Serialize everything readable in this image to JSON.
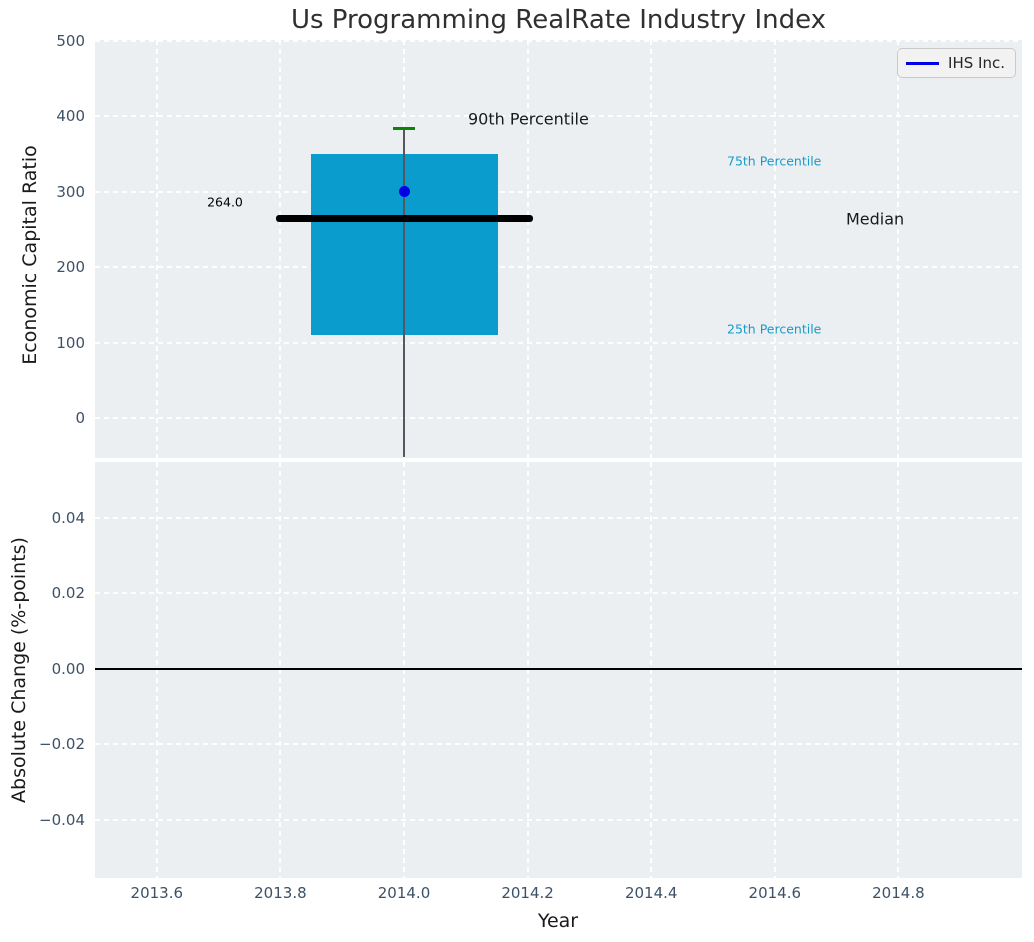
{
  "title": "Us Programming RealRate Industry Index",
  "x_axis": {
    "label": "Year",
    "lim": [
      2013.5,
      2015.0
    ],
    "tick_values": [
      2013.6,
      2013.8,
      2014.0,
      2014.2,
      2014.4,
      2014.6,
      2014.8
    ],
    "tick_labels": [
      "2013.6",
      "2013.8",
      "2014.0",
      "2014.2",
      "2014.4",
      "2014.6",
      "2014.8"
    ]
  },
  "legend": {
    "label": "IHS Inc.",
    "line_color": "#0000e6"
  },
  "colors": {
    "axes_background": "#eceff1",
    "grid": "#ffffff",
    "box_fill": "#0a9ccd",
    "whisker": "#55565e",
    "cap_90th": "#0a850a",
    "company_dot": "#0000e6",
    "median_line": "#000000",
    "percentile_text": "#189acb",
    "tick_text": "#3d5166"
  },
  "chart_data": [
    {
      "type": "boxplot",
      "panel": "top",
      "title": "Us Programming RealRate Industry Index",
      "ylabel": "Economic Capital Ratio",
      "ylim": [
        -53,
        501
      ],
      "ytick_values": [
        500,
        400,
        300,
        200,
        100,
        0
      ],
      "ytick_labels": [
        "500",
        "400",
        "300",
        "200",
        "100",
        "0"
      ],
      "grid": true,
      "legend_position": "upper right",
      "x_value": 2014.0,
      "stats": {
        "p90": 385,
        "p75": 350,
        "median": 264,
        "p25": 110,
        "company_value": 300,
        "whisker_low_clipped_below_axis": true
      },
      "median_value_label": "264.0",
      "annotations": {
        "p90": "90th Percentile",
        "p75": "75th Percentile",
        "median": "Median",
        "p25": "25th Percentile"
      }
    },
    {
      "type": "line",
      "panel": "bottom",
      "ylabel": "Absolute Change (%-points)",
      "ylim": [
        -0.055,
        0.055
      ],
      "ytick_values": [
        0.04,
        0.02,
        0.0,
        -0.02,
        -0.04
      ],
      "ytick_labels": [
        "0.04",
        "0.02",
        "0.00",
        "−0.02",
        "−0.04"
      ],
      "grid": true,
      "zero_line_value": 0.0
    }
  ]
}
